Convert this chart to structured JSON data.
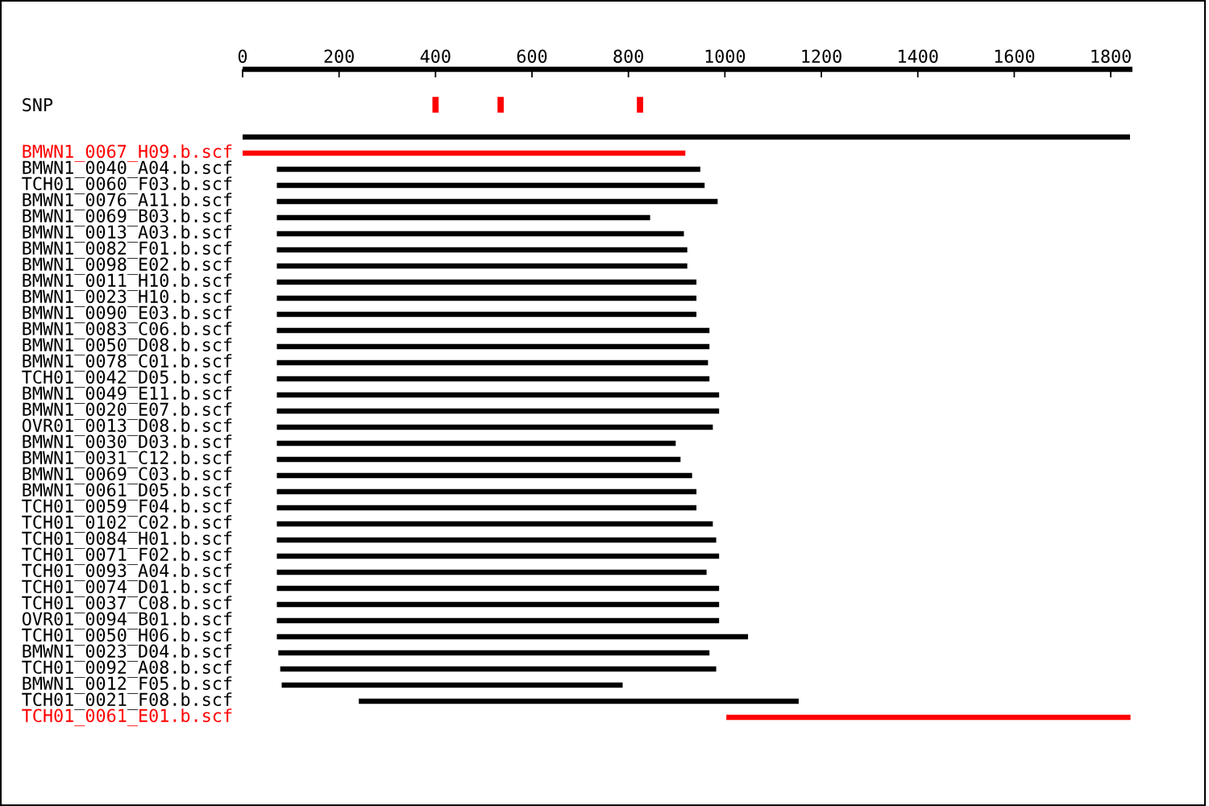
{
  "chart_data": {
    "type": "bar",
    "orientation": "horizontal",
    "xlim": [
      0,
      1845
    ],
    "xticks": [
      0,
      200,
      400,
      600,
      800,
      1000,
      1200,
      1400,
      1600,
      1800
    ],
    "categories": [
      "SNP",
      null,
      null,
      "BMWN1_0067_H09.b.scf",
      "BMWN1_0040_A04.b.scf",
      "TCH01_0060_F03.b.scf",
      "BMWN1_0076_A11.b.scf",
      "BMWN1_0069_B03.b.scf",
      "BMWN1_0013_A03.b.scf",
      "BMWN1_0082_F01.b.scf",
      "BMWN1_0098_E02.b.scf",
      "BMWN1_0011_H10.b.scf",
      "BMWN1_0023_H10.b.scf",
      "BMWN1_0090_E03.b.scf",
      "BMWN1_0083_C06.b.scf",
      "BMWN1_0050_D08.b.scf",
      "BMWN1_0078_C01.b.scf",
      "TCH01_0042_D05.b.scf",
      "BMWN1_0049_E11.b.scf",
      "BMWN1_0020_E07.b.scf",
      "OVR01_0013_D08.b.scf",
      "BMWN1_0030_D03.b.scf",
      "BMWN1_0031_C12.b.scf",
      "BMWN1_0069_C03.b.scf",
      "BMWN1_0061_D05.b.scf",
      "TCH01_0059_F04.b.scf",
      "TCH01_0102_C02.b.scf",
      "TCH01_0084_H01.b.scf",
      "TCH01_0071_F02.b.scf",
      "TCH01_0093_A04.b.scf",
      "TCH01_0074_D01.b.scf",
      "TCH01_0037_C08.b.scf",
      "OVR01_0094_B01.b.scf",
      "TCH01_0050_H06.b.scf",
      "BMWN1_0023_D04.b.scf",
      "TCH01_0092_A08.b.scf",
      "BMWN1_0012_F05.b.scf",
      "TCH01_0021_F08.b.scf",
      "TCH01_0061_E01.b.scf"
    ],
    "series": [
      {
        "base": [
          null,
          null,
          0,
          0,
          71,
          71,
          71,
          71,
          71,
          71,
          71,
          71,
          71,
          71,
          71,
          71,
          71,
          71,
          71,
          71,
          71,
          71,
          71,
          71,
          71,
          71,
          71,
          71,
          71,
          71,
          71,
          71,
          71,
          71,
          74,
          78,
          81,
          241,
          1003
        ],
        "values": [
          null,
          null,
          1840,
          918,
          878,
          887,
          914,
          774,
          844,
          851,
          851,
          870,
          870,
          870,
          897,
          897,
          894,
          897,
          917,
          917,
          904,
          827,
          837,
          861,
          870,
          870,
          904,
          911,
          917,
          891,
          917,
          917,
          917,
          977,
          894,
          904,
          707,
          912,
          838
        ],
        "colors": [
          null,
          null,
          "#000000",
          "#ff0000",
          "#000000",
          "#000000",
          "#000000",
          "#000000",
          "#000000",
          "#000000",
          "#000000",
          "#000000",
          "#000000",
          "#000000",
          "#000000",
          "#000000",
          "#000000",
          "#000000",
          "#000000",
          "#000000",
          "#000000",
          "#000000",
          "#000000",
          "#000000",
          "#000000",
          "#000000",
          "#000000",
          "#000000",
          "#000000",
          "#000000",
          "#000000",
          "#000000",
          "#000000",
          "#000000",
          "#000000",
          "#000000",
          "#000000",
          "#000000",
          "#ff0000"
        ]
      },
      {
        "type": "scatter",
        "marker": "square",
        "color": "#ff0000",
        "x": [
          "SNP",
          "SNP",
          "SNP"
        ],
        "values": [
          400,
          535,
          824
        ]
      }
    ]
  }
}
